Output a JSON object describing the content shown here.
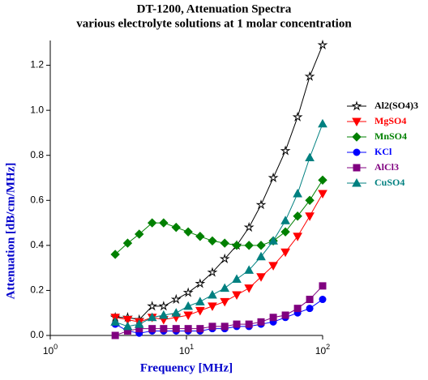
{
  "chart_data": {
    "type": "line",
    "title": "DT-1200, Attenuation Spectra",
    "subtitle": "various electrolyte solutions at 1 molar concentration",
    "x_label": "Frequency [MHz]",
    "y_label": "Attenuation [dB/cm/MHz]",
    "x_log": true,
    "xlim": [
      1,
      100
    ],
    "xticks": [
      {
        "value": 1,
        "label": "10",
        "exponent": "0"
      },
      {
        "value": 10,
        "label": "10",
        "exponent": "1"
      },
      {
        "value": 100,
        "label": "10",
        "exponent": "2"
      }
    ],
    "ylim": [
      0,
      1.31
    ],
    "yticks": [
      {
        "value": 0,
        "label": "0.0"
      },
      0.2,
      0.4,
      0.6,
      0.8,
      {
        "value": 1,
        "label": "1.0"
      },
      1.2
    ],
    "x": [
      3,
      3.7,
      4.5,
      5.6,
      6.8,
      8.4,
      10.3,
      12.6,
      15.5,
      19.1,
      23.4,
      28.8,
      35.3,
      43.4,
      53.3,
      65.5,
      80.4,
      100
    ],
    "legend": "right",
    "series": [
      {
        "name": "Al2(SO4)3",
        "color": "#000000",
        "marker": "star",
        "values": [
          0.08,
          0.08,
          0.07,
          0.13,
          0.13,
          0.16,
          0.19,
          0.23,
          0.28,
          0.34,
          0.4,
          0.48,
          0.58,
          0.7,
          0.82,
          0.97,
          1.15,
          1.29
        ]
      },
      {
        "name": "MgSO4",
        "color": "#ff0000",
        "marker": "tri-down",
        "values": [
          0.08,
          0.07,
          0.06,
          0.08,
          0.07,
          0.08,
          0.09,
          0.11,
          0.13,
          0.15,
          0.18,
          0.21,
          0.26,
          0.31,
          0.37,
          0.44,
          0.53,
          0.63
        ]
      },
      {
        "name": "MnSO4",
        "color": "#008000",
        "marker": "diamond",
        "values": [
          0.36,
          0.41,
          0.45,
          0.5,
          0.5,
          0.48,
          0.46,
          0.44,
          0.42,
          0.41,
          0.4,
          0.4,
          0.4,
          0.42,
          0.46,
          0.53,
          0.6,
          0.69
        ]
      },
      {
        "name": "KCl",
        "color": "#0000ff",
        "marker": "circle",
        "values": [
          0.05,
          0.02,
          0.01,
          0.02,
          0.02,
          0.02,
          0.02,
          0.02,
          0.03,
          0.03,
          0.04,
          0.04,
          0.05,
          0.06,
          0.08,
          0.1,
          0.12,
          0.16
        ]
      },
      {
        "name": "AlCl3",
        "color": "#800080",
        "marker": "square",
        "values": [
          0.0,
          0.02,
          0.03,
          0.03,
          0.03,
          0.03,
          0.03,
          0.03,
          0.04,
          0.04,
          0.05,
          0.05,
          0.06,
          0.08,
          0.09,
          0.12,
          0.16,
          0.22
        ]
      },
      {
        "name": "CuSO4",
        "color": "#008080",
        "marker": "tri-up",
        "values": [
          0.06,
          0.04,
          0.05,
          0.08,
          0.09,
          0.1,
          0.13,
          0.15,
          0.18,
          0.21,
          0.25,
          0.29,
          0.35,
          0.42,
          0.51,
          0.63,
          0.79,
          0.94
        ]
      }
    ]
  }
}
